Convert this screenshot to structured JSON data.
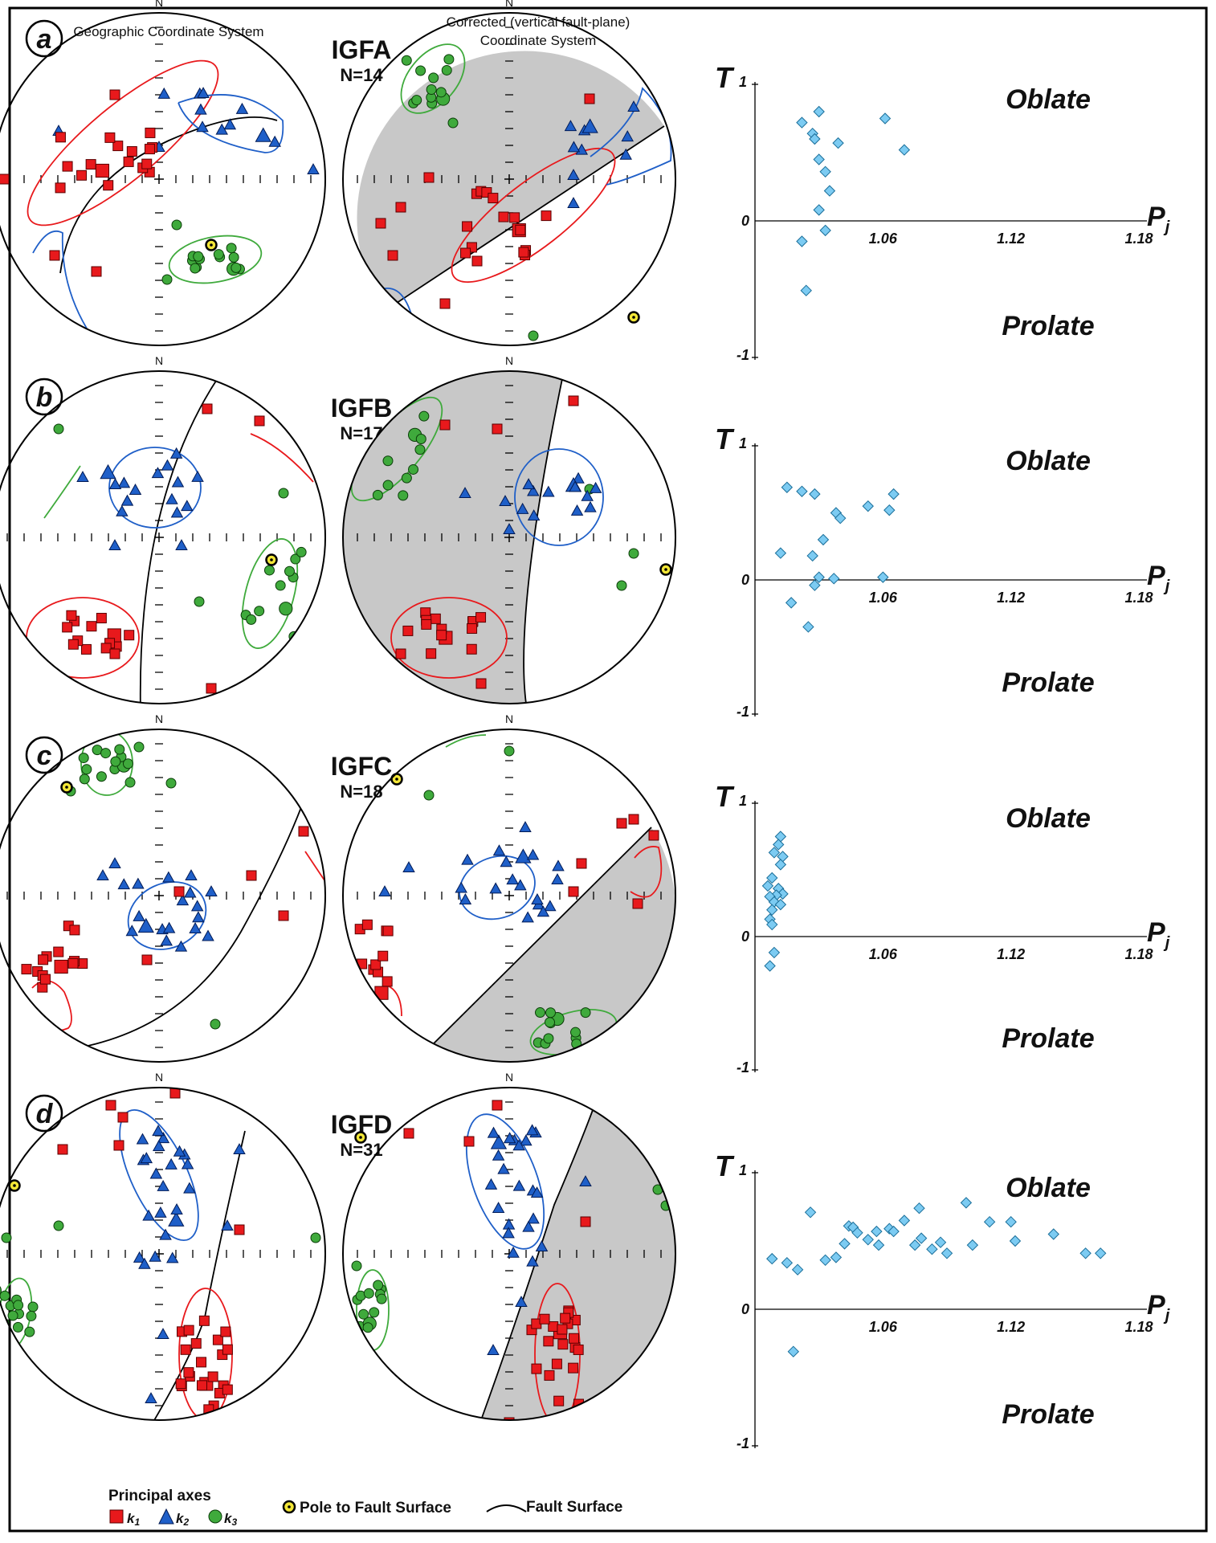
{
  "headers": {
    "geographic": "Geographic Coordinate System",
    "corrected_line1": "Corrected (vertical fault-plane)",
    "corrected_line2": "Coordinate System"
  },
  "north_label": "N",
  "tplot": {
    "t_label": "T",
    "p_label": "P",
    "p_sub": "j",
    "y_top": "1",
    "y_zero": "0",
    "y_bottom": "-1",
    "x_ticks": [
      "1.06",
      "1.12",
      "1.18"
    ],
    "oblate": "Oblate",
    "prolate": "Prolate"
  },
  "panels": [
    {
      "letter": "a",
      "site": "IGFA",
      "count": "N=14",
      "tpj": [
        [
          1.022,
          0.72
        ],
        [
          1.027,
          0.64
        ],
        [
          1.03,
          0.8
        ],
        [
          1.028,
          0.6
        ],
        [
          1.039,
          0.57
        ],
        [
          1.061,
          0.75
        ],
        [
          1.07,
          0.52
        ],
        [
          1.03,
          0.45
        ],
        [
          1.033,
          0.36
        ],
        [
          1.035,
          0.22
        ],
        [
          1.03,
          0.08
        ],
        [
          1.033,
          -0.07
        ],
        [
          1.022,
          -0.15
        ],
        [
          1.024,
          -0.51
        ]
      ]
    },
    {
      "letter": "b",
      "site": "IGFB",
      "count": "N=17",
      "tpj": [
        [
          1.015,
          0.69
        ],
        [
          1.022,
          0.66
        ],
        [
          1.028,
          0.64
        ],
        [
          1.038,
          0.5
        ],
        [
          1.04,
          0.46
        ],
        [
          1.053,
          0.55
        ],
        [
          1.065,
          0.64
        ],
        [
          1.063,
          0.52
        ],
        [
          1.032,
          0.3
        ],
        [
          1.012,
          0.2
        ],
        [
          1.027,
          0.18
        ],
        [
          1.03,
          0.02
        ],
        [
          1.037,
          0.01
        ],
        [
          1.06,
          0.02
        ],
        [
          1.028,
          -0.04
        ],
        [
          1.017,
          -0.17
        ],
        [
          1.025,
          -0.35
        ]
      ]
    },
    {
      "letter": "c",
      "site": "IGFC",
      "count": "N=18",
      "tpj": [
        [
          1.012,
          0.75
        ],
        [
          1.011,
          0.69
        ],
        [
          1.009,
          0.63
        ],
        [
          1.013,
          0.6
        ],
        [
          1.012,
          0.54
        ],
        [
          1.008,
          0.44
        ],
        [
          1.006,
          0.38
        ],
        [
          1.011,
          0.36
        ],
        [
          1.013,
          0.32
        ],
        [
          1.01,
          0.31
        ],
        [
          1.007,
          0.3
        ],
        [
          1.009,
          0.26
        ],
        [
          1.012,
          0.24
        ],
        [
          1.008,
          0.2
        ],
        [
          1.007,
          0.13
        ],
        [
          1.008,
          0.09
        ],
        [
          1.009,
          -0.12
        ],
        [
          1.007,
          -0.22
        ]
      ]
    },
    {
      "letter": "d",
      "site": "IGFD",
      "count": "N=31",
      "tpj": [
        [
          1.008,
          0.37
        ],
        [
          1.015,
          0.34
        ],
        [
          1.02,
          0.29
        ],
        [
          1.026,
          0.71
        ],
        [
          1.033,
          0.36
        ],
        [
          1.038,
          0.38
        ],
        [
          1.042,
          0.48
        ],
        [
          1.044,
          0.61
        ],
        [
          1.046,
          0.6
        ],
        [
          1.048,
          0.56
        ],
        [
          1.053,
          0.51
        ],
        [
          1.057,
          0.57
        ],
        [
          1.058,
          0.47
        ],
        [
          1.063,
          0.59
        ],
        [
          1.065,
          0.57
        ],
        [
          1.07,
          0.65
        ],
        [
          1.075,
          0.47
        ],
        [
          1.077,
          0.74
        ],
        [
          1.078,
          0.52
        ],
        [
          1.083,
          0.44
        ],
        [
          1.087,
          0.49
        ],
        [
          1.09,
          0.41
        ],
        [
          1.099,
          0.78
        ],
        [
          1.102,
          0.47
        ],
        [
          1.11,
          0.64
        ],
        [
          1.12,
          0.64
        ],
        [
          1.122,
          0.5
        ],
        [
          1.14,
          0.55
        ],
        [
          1.155,
          0.41
        ],
        [
          1.162,
          0.41
        ],
        [
          1.018,
          -0.31
        ]
      ]
    }
  ],
  "legend": {
    "principal_axes": "Principal axes",
    "k1": "k",
    "k1_sub": "1",
    "k2": "k",
    "k2_sub": "2",
    "k3": "k",
    "k3_sub": "3",
    "pole": "Pole to Fault Surface",
    "fault": "Fault Surface"
  },
  "colors": {
    "k1": "#e8191c",
    "k2": "#1f5fc8",
    "k3": "#3faa3c",
    "shade": "#c8c8c8",
    "diamond": "#7ccbf2",
    "pole": "#f2e637"
  }
}
